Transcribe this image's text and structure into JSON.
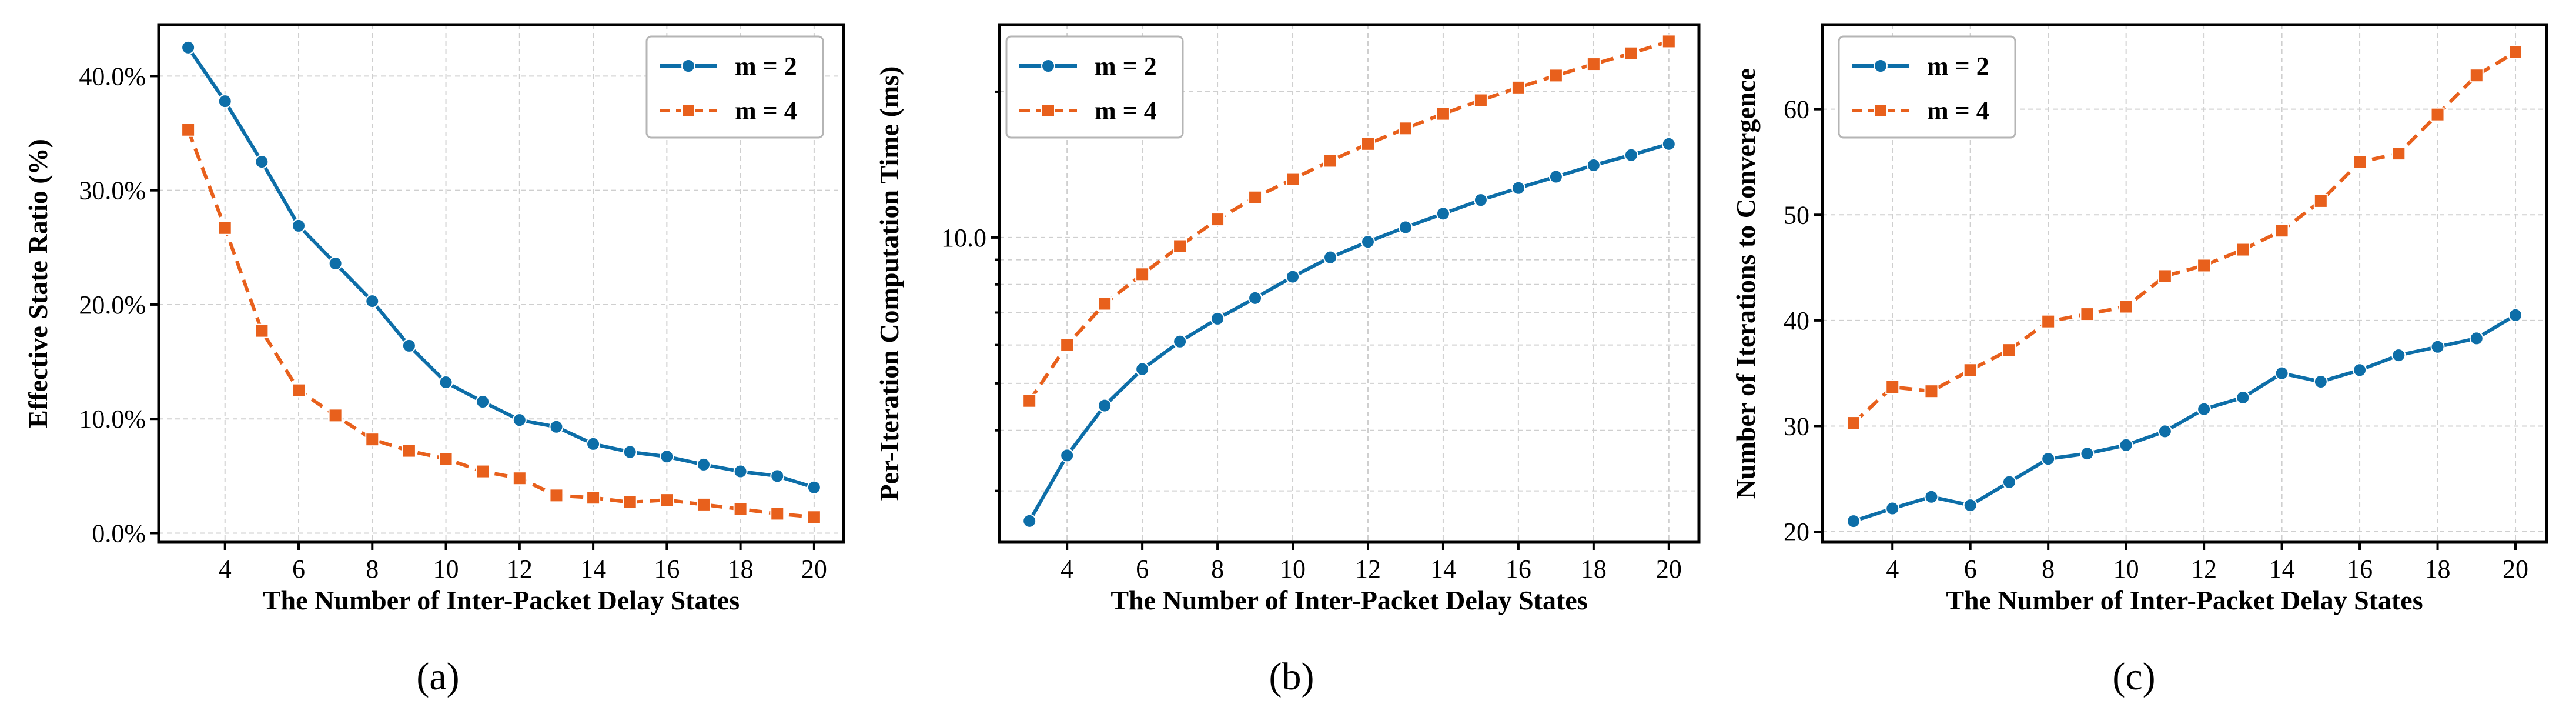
{
  "colors": {
    "m2": "#0d6ea8",
    "m4": "#e8601c"
  },
  "chart_data": [
    {
      "id": "a",
      "type": "line",
      "caption": "(a)",
      "xlabel": "The Number of Inter-Packet Delay States",
      "ylabel": "Effective State Ratio (%)",
      "yscale": "linear",
      "x": [
        3,
        4,
        5,
        6,
        7,
        8,
        9,
        10,
        11,
        12,
        13,
        14,
        15,
        16,
        17,
        18,
        19,
        20
      ],
      "xlim": [
        2.2,
        20.8
      ],
      "xticks": [
        4,
        6,
        8,
        10,
        12,
        14,
        16,
        18,
        20
      ],
      "xtick_labels": [
        "4",
        "6",
        "8",
        "10",
        "12",
        "14",
        "16",
        "18",
        "20"
      ],
      "ylim": [
        -0.8,
        44.5
      ],
      "yticks": [
        0,
        10,
        20,
        30,
        40
      ],
      "ytick_labels": [
        "0.0%",
        "10.0%",
        "20.0%",
        "30.0%",
        "40.0%"
      ],
      "grid": true,
      "legend": "top-right",
      "series": [
        {
          "name": "m = 2",
          "marker": "circle",
          "line": "solid",
          "values": [
            42.5,
            37.8,
            32.5,
            26.9,
            23.6,
            20.3,
            16.4,
            13.2,
            11.5,
            9.9,
            9.3,
            7.8,
            7.1,
            6.7,
            6.0,
            5.4,
            5.0,
            4.0
          ]
        },
        {
          "name": "m = 4",
          "marker": "square",
          "line": "dashed",
          "values": [
            35.3,
            26.7,
            17.7,
            12.5,
            10.3,
            8.2,
            7.2,
            6.5,
            5.4,
            4.8,
            3.3,
            3.1,
            2.7,
            2.9,
            2.5,
            2.1,
            1.7,
            1.4
          ]
        }
      ]
    },
    {
      "id": "b",
      "type": "line",
      "caption": "(b)",
      "xlabel": "The Number of Inter-Packet Delay States",
      "ylabel": "Per-Iteration Computation Time (ms)",
      "yscale": "log",
      "x": [
        3,
        4,
        5,
        6,
        7,
        8,
        9,
        10,
        11,
        12,
        13,
        14,
        15,
        16,
        17,
        18,
        19,
        20
      ],
      "xlim": [
        2.2,
        20.8
      ],
      "xticks": [
        4,
        6,
        8,
        10,
        12,
        14,
        16,
        18,
        20
      ],
      "xtick_labels": [
        "4",
        "6",
        "8",
        "10",
        "12",
        "14",
        "16",
        "18",
        "20"
      ],
      "ylim": [
        2.35,
        27.5
      ],
      "yticks": [
        10
      ],
      "ytick_labels": [
        "10.0"
      ],
      "grid": true,
      "legend": "top-left",
      "series": [
        {
          "name": "m = 2",
          "marker": "circle",
          "line": "solid",
          "values": [
            2.6,
            3.55,
            4.5,
            5.35,
            6.1,
            6.8,
            7.5,
            8.3,
            9.1,
            9.8,
            10.5,
            11.2,
            11.95,
            12.65,
            13.35,
            14.1,
            14.8,
            15.6
          ]
        },
        {
          "name": "m = 4",
          "marker": "square",
          "line": "dashed",
          "values": [
            4.6,
            6.0,
            7.3,
            8.4,
            9.6,
            10.9,
            12.1,
            13.2,
            14.4,
            15.6,
            16.8,
            18.0,
            19.2,
            20.4,
            21.6,
            22.8,
            24.0,
            25.4
          ]
        }
      ]
    },
    {
      "id": "c",
      "type": "line",
      "caption": "(c)",
      "xlabel": "The Number of Inter-Packet Delay States",
      "ylabel": "Number of Iterations to Convergence",
      "yscale": "linear",
      "x": [
        3,
        4,
        5,
        6,
        7,
        8,
        9,
        10,
        11,
        12,
        13,
        14,
        15,
        16,
        17,
        18,
        19,
        20
      ],
      "xlim": [
        2.2,
        20.8
      ],
      "xticks": [
        4,
        6,
        8,
        10,
        12,
        14,
        16,
        18,
        20
      ],
      "xtick_labels": [
        "4",
        "6",
        "8",
        "10",
        "12",
        "14",
        "16",
        "18",
        "20"
      ],
      "ylim": [
        19.0,
        68.0
      ],
      "yticks": [
        20,
        30,
        40,
        50,
        60
      ],
      "ytick_labels": [
        "20",
        "30",
        "40",
        "50",
        "60"
      ],
      "grid": true,
      "legend": "top-left",
      "series": [
        {
          "name": "m = 2",
          "marker": "circle",
          "line": "solid",
          "values": [
            21.0,
            22.2,
            23.3,
            22.5,
            24.7,
            26.9,
            27.4,
            28.2,
            29.5,
            31.6,
            32.7,
            35.0,
            34.2,
            35.3,
            36.7,
            37.5,
            38.3,
            40.5
          ]
        },
        {
          "name": "m = 4",
          "marker": "square",
          "line": "dashed",
          "values": [
            30.3,
            33.7,
            33.3,
            35.3,
            37.2,
            39.9,
            40.6,
            41.3,
            44.2,
            45.2,
            46.7,
            48.5,
            51.3,
            55.0,
            55.8,
            59.5,
            63.2,
            65.4
          ]
        }
      ]
    }
  ]
}
